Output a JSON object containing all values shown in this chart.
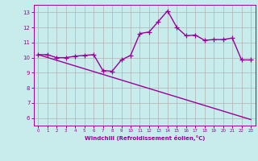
{
  "line1_x": [
    0,
    1,
    2,
    3,
    4,
    5,
    6,
    7,
    8,
    9,
    10,
    11,
    12,
    13,
    14,
    15,
    16,
    17,
    18,
    19,
    20,
    21,
    22,
    23
  ],
  "line1_y": [
    10.2,
    10.2,
    10.0,
    10.0,
    10.1,
    10.15,
    10.2,
    9.15,
    9.1,
    9.85,
    10.15,
    11.6,
    11.7,
    12.4,
    13.1,
    12.0,
    11.45,
    11.5,
    11.15,
    11.2,
    11.2,
    11.3,
    9.85,
    9.85
  ],
  "line2_x": [
    0,
    23
  ],
  "line2_y": [
    10.2,
    5.9
  ],
  "color": "#990099",
  "bg_color": "#c8ecec",
  "grid_color": "#b0b0b0",
  "xlim": [
    -0.5,
    23.5
  ],
  "ylim": [
    5.5,
    13.5
  ],
  "yticks": [
    6,
    7,
    8,
    9,
    10,
    11,
    12,
    13
  ],
  "xticks": [
    0,
    1,
    2,
    3,
    4,
    5,
    6,
    7,
    8,
    9,
    10,
    11,
    12,
    13,
    14,
    15,
    16,
    17,
    18,
    19,
    20,
    21,
    22,
    23
  ],
  "xlabel": "Windchill (Refroidissement éolien,°C)",
  "marker": "+",
  "markersize": 4,
  "linewidth": 1.0
}
